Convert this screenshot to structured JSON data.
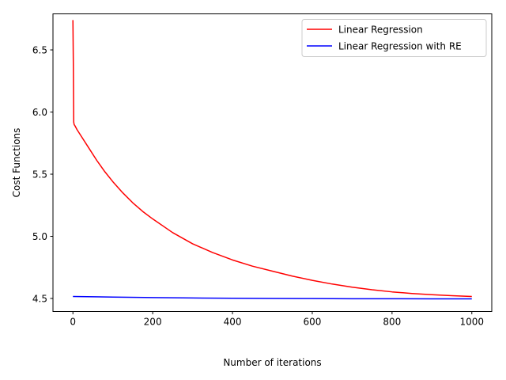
{
  "chart_data": {
    "type": "line",
    "title": "",
    "xlabel": "Number of iterations",
    "ylabel": "Cost Functions",
    "xlim": [
      -50,
      1050
    ],
    "ylim": [
      4.395,
      6.79
    ],
    "xticks": [
      0,
      200,
      400,
      600,
      800,
      1000
    ],
    "yticks": [
      4.5,
      5.0,
      5.5,
      6.0,
      6.5
    ],
    "xtick_labels": [
      "0",
      "200",
      "400",
      "600",
      "800",
      "1000"
    ],
    "ytick_labels": [
      "4.5",
      "5.0",
      "5.5",
      "6.0",
      "6.5"
    ],
    "grid": false,
    "legend_position": "top-right",
    "series": [
      {
        "name": "Linear Regression",
        "color": "#ff0000",
        "x": [
          0,
          1,
          2,
          3,
          5,
          10,
          20,
          40,
          60,
          80,
          100,
          125,
          150,
          175,
          200,
          250,
          300,
          350,
          400,
          450,
          500,
          550,
          600,
          650,
          700,
          750,
          800,
          850,
          900,
          950,
          1000
        ],
        "y": [
          6.74,
          6.4,
          5.92,
          5.9,
          5.89,
          5.86,
          5.81,
          5.71,
          5.61,
          5.52,
          5.44,
          5.35,
          5.27,
          5.2,
          5.14,
          5.03,
          4.94,
          4.87,
          4.81,
          4.76,
          4.72,
          4.68,
          4.646,
          4.616,
          4.591,
          4.57,
          4.553,
          4.54,
          4.53,
          4.522,
          4.516
        ]
      },
      {
        "name": "Linear Regression with RE",
        "color": "#0000ff",
        "x": [
          0,
          100,
          200,
          300,
          400,
          500,
          600,
          700,
          800,
          900,
          1000
        ],
        "y": [
          4.516,
          4.511,
          4.507,
          4.504,
          4.502,
          4.5,
          4.499,
          4.498,
          4.498,
          4.497,
          4.497
        ]
      }
    ]
  }
}
